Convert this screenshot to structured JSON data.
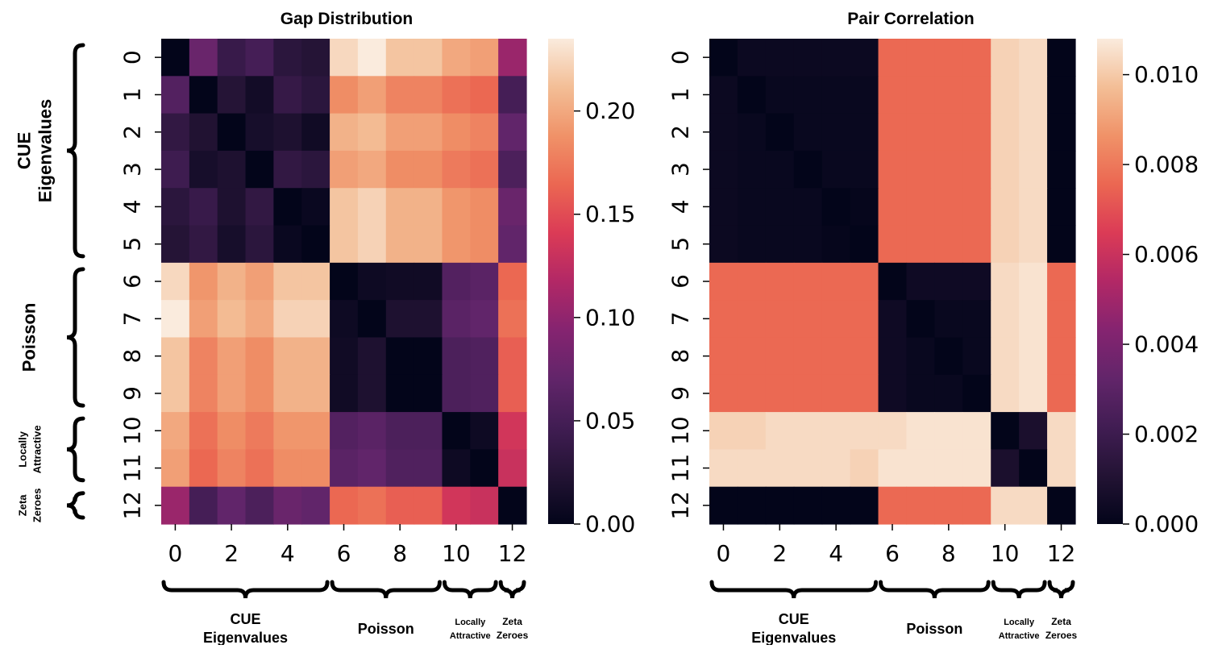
{
  "chart_data": [
    {
      "type": "heatmap",
      "title": "Gap Distribution",
      "xlabel": "",
      "ylabel": "",
      "row_ticks": [
        "0",
        "1",
        "2",
        "3",
        "4",
        "5",
        "6",
        "7",
        "8",
        "9",
        "10",
        "11",
        "12"
      ],
      "col_ticks": [
        "0",
        "2",
        "4",
        "6",
        "8",
        "10",
        "12"
      ],
      "colormap": "rocket",
      "vmin": 0.0,
      "vmax": 0.235,
      "colorbar_ticks": [
        "0.00",
        "0.05",
        "0.10",
        "0.15",
        "0.20"
      ],
      "colorbar_tick_values": [
        0.0,
        0.05,
        0.1,
        0.15,
        0.2
      ],
      "values": [
        [
          0.0,
          0.075,
          0.04,
          0.05,
          0.03,
          0.025,
          0.225,
          0.235,
          0.215,
          0.215,
          0.2,
          0.195,
          0.105
        ],
        [
          0.06,
          0.0,
          0.025,
          0.012,
          0.038,
          0.03,
          0.185,
          0.195,
          0.18,
          0.18,
          0.17,
          0.165,
          0.05
        ],
        [
          0.035,
          0.022,
          0.0,
          0.015,
          0.02,
          0.01,
          0.205,
          0.21,
          0.195,
          0.195,
          0.185,
          0.18,
          0.07
        ],
        [
          0.045,
          0.015,
          0.02,
          0.0,
          0.035,
          0.03,
          0.195,
          0.2,
          0.185,
          0.185,
          0.175,
          0.17,
          0.055
        ],
        [
          0.03,
          0.04,
          0.02,
          0.035,
          0.0,
          0.005,
          0.215,
          0.222,
          0.205,
          0.205,
          0.19,
          0.185,
          0.075
        ],
        [
          0.025,
          0.035,
          0.015,
          0.03,
          0.005,
          0.0,
          0.215,
          0.222,
          0.205,
          0.205,
          0.19,
          0.185,
          0.07
        ],
        [
          0.225,
          0.19,
          0.205,
          0.195,
          0.215,
          0.215,
          0.0,
          0.008,
          0.01,
          0.01,
          0.06,
          0.065,
          0.165
        ],
        [
          0.235,
          0.195,
          0.21,
          0.2,
          0.222,
          0.222,
          0.008,
          0.0,
          0.02,
          0.02,
          0.065,
          0.07,
          0.17
        ],
        [
          0.215,
          0.18,
          0.195,
          0.185,
          0.205,
          0.205,
          0.01,
          0.02,
          0.0,
          0.0,
          0.055,
          0.058,
          0.16
        ],
        [
          0.215,
          0.18,
          0.195,
          0.185,
          0.205,
          0.205,
          0.01,
          0.02,
          0.0,
          0.0,
          0.055,
          0.058,
          0.16
        ],
        [
          0.2,
          0.17,
          0.185,
          0.175,
          0.19,
          0.19,
          0.06,
          0.065,
          0.055,
          0.055,
          0.0,
          0.008,
          0.135
        ],
        [
          0.195,
          0.165,
          0.18,
          0.17,
          0.185,
          0.185,
          0.065,
          0.07,
          0.058,
          0.058,
          0.008,
          0.0,
          0.13
        ],
        [
          0.105,
          0.05,
          0.07,
          0.055,
          0.075,
          0.07,
          0.165,
          0.17,
          0.16,
          0.16,
          0.135,
          0.13,
          0.0
        ]
      ],
      "row_groups": [
        {
          "label": "CUE",
          "label2": "Eigenvalues",
          "start": 0,
          "end": 5
        },
        {
          "label": "Poisson",
          "label2": "",
          "start": 6,
          "end": 9
        },
        {
          "label": "Locally",
          "label2": "Attractive",
          "start": 10,
          "end": 11
        },
        {
          "label": "Zeta",
          "label2": "Zeroes",
          "start": 12,
          "end": 12
        }
      ],
      "col_groups": [
        {
          "label": "CUE",
          "label2": "Eigenvalues",
          "start": 0,
          "end": 5
        },
        {
          "label": "Poisson",
          "label2": "",
          "start": 6,
          "end": 9
        },
        {
          "label": "Locally",
          "label2": "Attractive",
          "start": 10,
          "end": 11
        },
        {
          "label": "Zeta",
          "label2": "Zeroes",
          "start": 12,
          "end": 12
        }
      ]
    },
    {
      "type": "heatmap",
      "title": "Pair Correlation",
      "xlabel": "",
      "ylabel": "",
      "row_ticks": [
        "0",
        "1",
        "2",
        "3",
        "4",
        "5",
        "6",
        "7",
        "8",
        "9",
        "10",
        "11",
        "12"
      ],
      "col_ticks": [
        "0",
        "2",
        "4",
        "6",
        "8",
        "10",
        "12"
      ],
      "colormap": "rocket",
      "vmin": 0.0,
      "vmax": 0.0108,
      "colorbar_ticks": [
        "0.000",
        "0.002",
        "0.004",
        "0.006",
        "0.008",
        "0.010"
      ],
      "colorbar_tick_values": [
        0.0,
        0.002,
        0.004,
        0.006,
        0.008,
        0.01
      ],
      "values": [
        [
          0.0,
          0.0003,
          0.0003,
          0.0003,
          0.0003,
          0.0003,
          0.0076,
          0.0076,
          0.0076,
          0.0076,
          0.0102,
          0.0104,
          0.0
        ],
        [
          0.0003,
          0.0,
          0.0002,
          0.0002,
          0.0002,
          0.0002,
          0.0076,
          0.0076,
          0.0076,
          0.0076,
          0.0102,
          0.0104,
          0.0
        ],
        [
          0.0003,
          0.0002,
          0.0,
          0.0002,
          0.0002,
          0.0002,
          0.0076,
          0.0076,
          0.0076,
          0.0076,
          0.0102,
          0.0104,
          0.0
        ],
        [
          0.0003,
          0.0002,
          0.0002,
          0.0,
          0.0002,
          0.0002,
          0.0076,
          0.0076,
          0.0076,
          0.0076,
          0.0102,
          0.0104,
          0.0
        ],
        [
          0.0003,
          0.0002,
          0.0002,
          0.0002,
          0.0,
          0.0001,
          0.0076,
          0.0076,
          0.0076,
          0.0076,
          0.0102,
          0.0104,
          0.0
        ],
        [
          0.0003,
          0.0002,
          0.0002,
          0.0002,
          0.0001,
          0.0,
          0.0076,
          0.0076,
          0.0076,
          0.0076,
          0.0102,
          0.0104,
          0.0
        ],
        [
          0.0076,
          0.0076,
          0.0076,
          0.0076,
          0.0076,
          0.0076,
          0.0,
          0.0004,
          0.0004,
          0.0004,
          0.0104,
          0.0106,
          0.0076
        ],
        [
          0.0076,
          0.0076,
          0.0076,
          0.0076,
          0.0076,
          0.0076,
          0.0004,
          0.0,
          0.0002,
          0.0002,
          0.0104,
          0.0106,
          0.0076
        ],
        [
          0.0076,
          0.0076,
          0.0076,
          0.0076,
          0.0076,
          0.0076,
          0.0004,
          0.0002,
          0.0,
          0.0002,
          0.0104,
          0.0106,
          0.0076
        ],
        [
          0.0076,
          0.0076,
          0.0076,
          0.0076,
          0.0076,
          0.0076,
          0.0004,
          0.0002,
          0.0002,
          0.0,
          0.0104,
          0.0106,
          0.0076
        ],
        [
          0.0102,
          0.0102,
          0.0104,
          0.0104,
          0.0104,
          0.0104,
          0.0104,
          0.0106,
          0.0106,
          0.0106,
          0.0,
          0.0008,
          0.0104
        ],
        [
          0.0104,
          0.0104,
          0.0104,
          0.0104,
          0.0104,
          0.0102,
          0.0106,
          0.0106,
          0.0106,
          0.0106,
          0.0008,
          0.0,
          0.0104
        ],
        [
          0.0,
          0.0,
          0.0,
          0.0,
          0.0,
          0.0,
          0.0076,
          0.0076,
          0.0076,
          0.0076,
          0.0104,
          0.0104,
          0.0
        ]
      ],
      "row_groups": [],
      "col_groups": [
        {
          "label": "CUE",
          "label2": "Eigenvalues",
          "start": 0,
          "end": 5
        },
        {
          "label": "Poisson",
          "label2": "",
          "start": 6,
          "end": 9
        },
        {
          "label": "Locally",
          "label2": "Attractive",
          "start": 10,
          "end": 11
        },
        {
          "label": "Zeta",
          "label2": "Zeroes",
          "start": 12,
          "end": 12
        }
      ]
    }
  ]
}
